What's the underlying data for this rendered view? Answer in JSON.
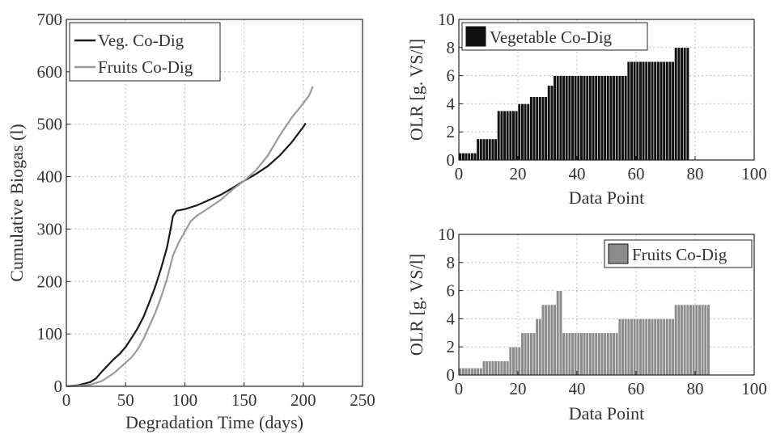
{
  "chart_data": [
    {
      "type": "line",
      "xlabel": "Degradation Time (days)",
      "ylabel": "Cumulative Biogas (l)",
      "xlim": [
        0,
        250
      ],
      "ylim": [
        0,
        700
      ],
      "xticks": [
        "0",
        "50",
        "100",
        "150",
        "200",
        "250"
      ],
      "yticks": [
        "0",
        "100",
        "200",
        "300",
        "400",
        "500",
        "600",
        "700"
      ],
      "grid": true,
      "legend_position": "top-left",
      "series": [
        {
          "name": "Veg. Co-Dig",
          "color": "#1a1a1a",
          "points": [
            [
              0,
              0
            ],
            [
              10,
              2
            ],
            [
              20,
              8
            ],
            [
              25,
              15
            ],
            [
              30,
              28
            ],
            [
              35,
              40
            ],
            [
              40,
              52
            ],
            [
              45,
              62
            ],
            [
              50,
              75
            ],
            [
              55,
              92
            ],
            [
              60,
              110
            ],
            [
              65,
              132
            ],
            [
              70,
              160
            ],
            [
              75,
              190
            ],
            [
              80,
              225
            ],
            [
              85,
              265
            ],
            [
              88,
              300
            ],
            [
              90,
              325
            ],
            [
              93,
              335
            ],
            [
              100,
              338
            ],
            [
              110,
              345
            ],
            [
              120,
              355
            ],
            [
              130,
              365
            ],
            [
              140,
              378
            ],
            [
              150,
              392
            ],
            [
              160,
              405
            ],
            [
              170,
              420
            ],
            [
              180,
              440
            ],
            [
              190,
              465
            ],
            [
              200,
              495
            ],
            [
              202,
              502
            ]
          ]
        },
        {
          "name": "Fruits Co-Dig",
          "color": "#9a9a9a",
          "points": [
            [
              0,
              0
            ],
            [
              10,
              1
            ],
            [
              20,
              3
            ],
            [
              30,
              10
            ],
            [
              40,
              25
            ],
            [
              50,
              45
            ],
            [
              55,
              55
            ],
            [
              60,
              70
            ],
            [
              65,
              90
            ],
            [
              70,
              115
            ],
            [
              75,
              140
            ],
            [
              80,
              170
            ],
            [
              85,
              205
            ],
            [
              90,
              250
            ],
            [
              95,
              275
            ],
            [
              100,
              295
            ],
            [
              105,
              315
            ],
            [
              110,
              325
            ],
            [
              120,
              340
            ],
            [
              130,
              355
            ],
            [
              140,
              375
            ],
            [
              150,
              392
            ],
            [
              160,
              412
            ],
            [
              170,
              440
            ],
            [
              180,
              478
            ],
            [
              190,
              512
            ],
            [
              200,
              540
            ],
            [
              205,
              555
            ],
            [
              208,
              572
            ]
          ]
        }
      ]
    },
    {
      "type": "bar",
      "xlabel": "Data Point",
      "ylabel": "OLR [g. VS/l]",
      "xlim": [
        0,
        100
      ],
      "ylim": [
        0,
        10
      ],
      "xticks": [
        "0",
        "20",
        "40",
        "60",
        "80",
        "100"
      ],
      "yticks": [
        "0",
        "2",
        "4",
        "6",
        "8",
        "10"
      ],
      "grid": true,
      "legend_position": "top-left",
      "series": [
        {
          "name": "Vegetable Co-Dig",
          "color": "#111111",
          "values": [
            0.5,
            0.5,
            0.5,
            0.5,
            0.5,
            0.5,
            1.5,
            1.5,
            1.5,
            1.5,
            1.5,
            1.5,
            1.5,
            3.5,
            3.5,
            3.5,
            3.5,
            3.5,
            3.5,
            3.5,
            4,
            4,
            4,
            4,
            4.5,
            4.5,
            4.5,
            4.5,
            4.5,
            4.5,
            5.3,
            5.3,
            6,
            6,
            6,
            6,
            6,
            6,
            6,
            6,
            6,
            6,
            6,
            6,
            6,
            6,
            6,
            6,
            6,
            6,
            6,
            6,
            6,
            6,
            6,
            6,
            6,
            7,
            7,
            7,
            7,
            7,
            7,
            7,
            7,
            7,
            7,
            7,
            7,
            7,
            7,
            7,
            7,
            8,
            8,
            8,
            8,
            8
          ]
        }
      ]
    },
    {
      "type": "bar",
      "xlabel": "Data Point",
      "ylabel": "OLR [g. VS/l]",
      "xlim": [
        0,
        100
      ],
      "ylim": [
        0,
        10
      ],
      "xticks": [
        "0",
        "20",
        "40",
        "60",
        "80",
        "100"
      ],
      "yticks": [
        "0",
        "2",
        "4",
        "6",
        "8",
        "10"
      ],
      "grid": true,
      "legend_position": "top-right",
      "series": [
        {
          "name": "Fruits Co-Dig",
          "color": "#8c8c8c",
          "values": [
            0.5,
            0.5,
            0.5,
            0.5,
            0.5,
            0.5,
            0.5,
            0.5,
            1,
            1,
            1,
            1,
            1,
            1,
            1,
            1,
            1,
            2,
            2,
            2,
            2,
            3,
            3,
            3,
            3,
            3,
            4,
            4,
            5,
            5,
            5,
            5,
            5,
            6,
            6,
            3,
            3,
            3,
            3,
            3,
            3,
            3,
            3,
            3,
            3,
            3,
            3,
            3,
            3,
            3,
            3,
            3,
            3,
            3,
            4,
            4,
            4,
            4,
            4,
            4,
            4,
            4,
            4,
            4,
            4,
            4,
            4,
            4,
            4,
            4,
            4,
            4,
            4,
            5,
            5,
            5,
            5,
            5,
            5,
            5,
            5,
            5,
            5,
            5,
            5
          ]
        }
      ]
    }
  ]
}
